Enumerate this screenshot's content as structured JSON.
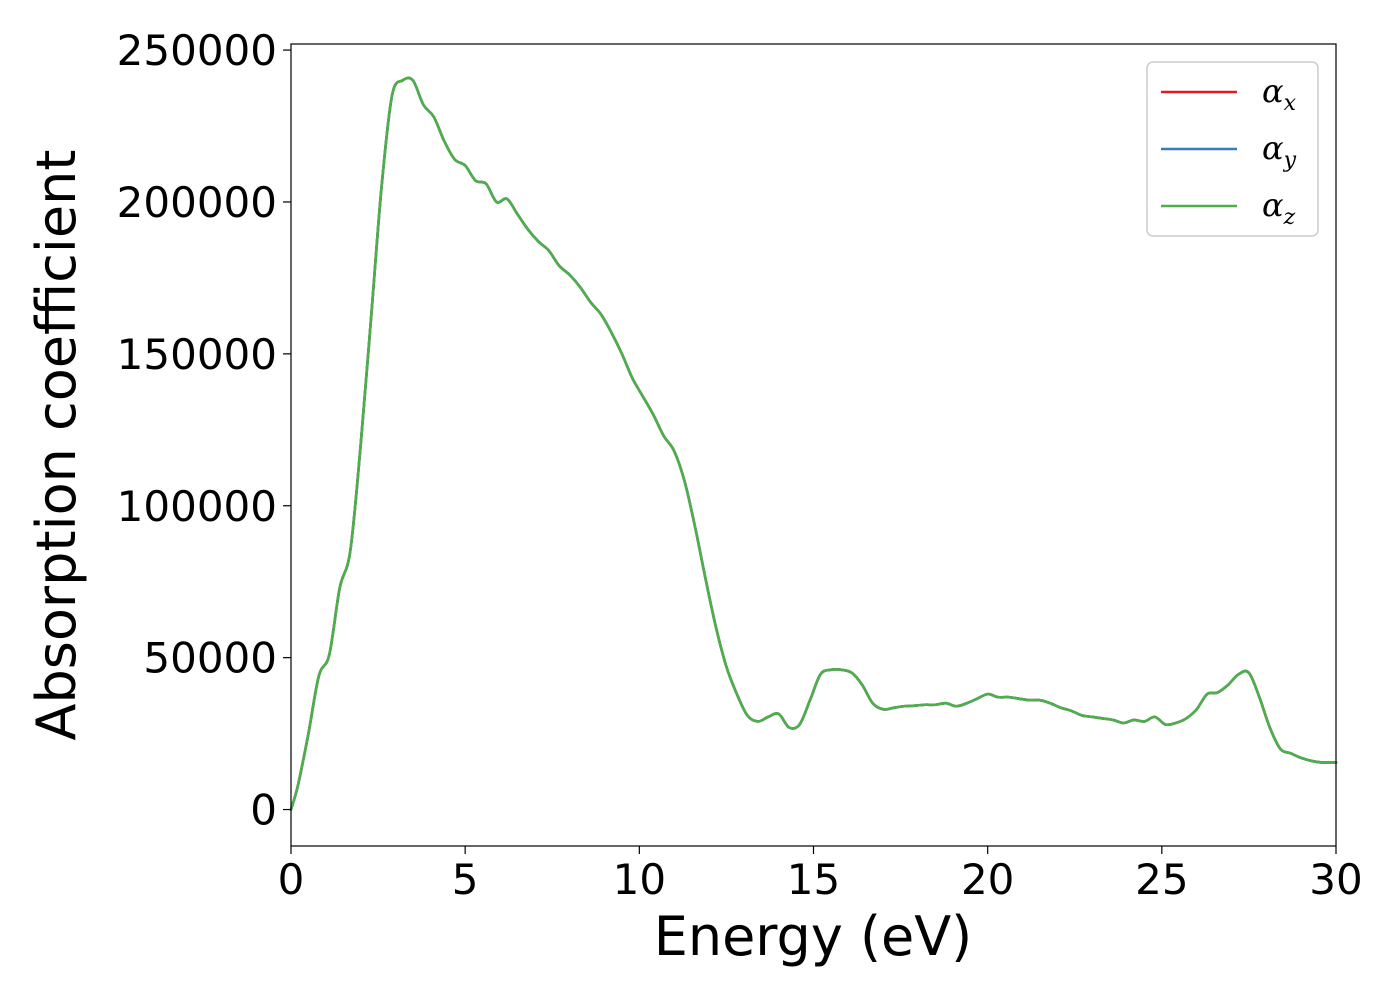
{
  "chart_data": {
    "type": "line",
    "title": "",
    "xlabel": "Energy (eV)",
    "ylabel": "Absorption coefficient",
    "xlim": [
      0,
      30
    ],
    "ylim": [
      -12000,
      252000
    ],
    "xticks": [
      0,
      5,
      10,
      15,
      20,
      25,
      30
    ],
    "yticks": [
      0,
      50000,
      100000,
      150000,
      200000,
      250000
    ],
    "xtick_labels": [
      "0",
      "5",
      "10",
      "15",
      "20",
      "25",
      "30"
    ],
    "ytick_labels": [
      "0",
      "50000",
      "100000",
      "150000",
      "200000",
      "250000"
    ],
    "grid": false,
    "legend_position": "top-right",
    "x": [
      0,
      0.2,
      0.5,
      0.8,
      1.1,
      1.4,
      1.7,
      2.0,
      2.3,
      2.6,
      2.9,
      3.2,
      3.5,
      3.8,
      4.1,
      4.4,
      4.7,
      5.0,
      5.3,
      5.6,
      5.9,
      6.2,
      6.5,
      6.8,
      7.1,
      7.4,
      7.7,
      8.0,
      8.3,
      8.6,
      8.9,
      9.2,
      9.5,
      9.8,
      10.1,
      10.4,
      10.7,
      11.0,
      11.3,
      11.6,
      11.9,
      12.2,
      12.5,
      12.8,
      13.1,
      13.4,
      13.7,
      14.0,
      14.3,
      14.6,
      14.9,
      15.2,
      15.5,
      15.8,
      16.1,
      16.4,
      16.7,
      17.0,
      17.3,
      17.6,
      17.9,
      18.2,
      18.5,
      18.8,
      19.1,
      19.4,
      19.7,
      20.0,
      20.3,
      20.6,
      20.9,
      21.2,
      21.5,
      21.8,
      22.1,
      22.4,
      22.7,
      23.0,
      23.3,
      23.6,
      23.9,
      24.2,
      24.5,
      24.8,
      25.1,
      25.4,
      25.7,
      26.0,
      26.3,
      26.6,
      26.9,
      27.2,
      27.5,
      27.8,
      28.1,
      28.4,
      28.7,
      29.0,
      29.3,
      29.6,
      30.0
    ],
    "series": [
      {
        "name": "α_x",
        "label_base": "α",
        "label_sub": "x",
        "color": "#e41a1c",
        "values": [
          0,
          8000,
          25000,
          44000,
          51000,
          73000,
          85000,
          120000,
          162000,
          205000,
          235000,
          240000,
          240000,
          232000,
          228000,
          220000,
          214000,
          212000,
          207000,
          206000,
          200000,
          201000,
          196000,
          191000,
          187000,
          184000,
          179000,
          176000,
          172000,
          167000,
          163000,
          157000,
          150000,
          142000,
          136000,
          130000,
          123000,
          118000,
          108000,
          93000,
          76000,
          60000,
          47000,
          38000,
          31000,
          29000,
          30500,
          31500,
          27000,
          28000,
          36000,
          44500,
          46000,
          46000,
          45000,
          41000,
          35000,
          33000,
          33500,
          34000,
          34200,
          34500,
          34500,
          35000,
          34000,
          35000,
          36500,
          38000,
          37000,
          37000,
          36500,
          36000,
          36000,
          35000,
          33500,
          32500,
          31000,
          30500,
          30000,
          29500,
          28500,
          29500,
          29000,
          30500,
          28000,
          28500,
          30000,
          33000,
          38000,
          38500,
          41000,
          44500,
          45000,
          37000,
          27000,
          20000,
          18500,
          17000,
          16000,
          15500,
          15500
        ]
      },
      {
        "name": "α_y",
        "label_base": "α",
        "label_sub": "y",
        "color": "#377eb8",
        "values": [
          0,
          8000,
          25000,
          44000,
          51000,
          73000,
          85000,
          120000,
          162000,
          205000,
          235000,
          240000,
          240000,
          232000,
          228000,
          220000,
          214000,
          212000,
          207000,
          206000,
          200000,
          201000,
          196000,
          191000,
          187000,
          184000,
          179000,
          176000,
          172000,
          167000,
          163000,
          157000,
          150000,
          142000,
          136000,
          130000,
          123000,
          118000,
          108000,
          93000,
          76000,
          60000,
          47000,
          38000,
          31000,
          29000,
          30500,
          31500,
          27000,
          28000,
          36000,
          44500,
          46000,
          46000,
          45000,
          41000,
          35000,
          33000,
          33500,
          34000,
          34200,
          34500,
          34500,
          35000,
          34000,
          35000,
          36500,
          38000,
          37000,
          37000,
          36500,
          36000,
          36000,
          35000,
          33500,
          32500,
          31000,
          30500,
          30000,
          29500,
          28500,
          29500,
          29000,
          30500,
          28000,
          28500,
          30000,
          33000,
          38000,
          38500,
          41000,
          44500,
          45000,
          37000,
          27000,
          20000,
          18500,
          17000,
          16000,
          15500,
          15500
        ]
      },
      {
        "name": "α_z",
        "label_base": "α",
        "label_sub": "z",
        "color": "#4daf4a",
        "values": [
          0,
          8000,
          25000,
          44000,
          51000,
          73000,
          85000,
          120000,
          162000,
          205000,
          235000,
          240000,
          240000,
          232000,
          228000,
          220000,
          214000,
          212000,
          207000,
          206000,
          200000,
          201000,
          196000,
          191000,
          187000,
          184000,
          179000,
          176000,
          172000,
          167000,
          163000,
          157000,
          150000,
          142000,
          136000,
          130000,
          123000,
          118000,
          108000,
          93000,
          76000,
          60000,
          47000,
          38000,
          31000,
          29000,
          30500,
          31500,
          27000,
          28000,
          36000,
          44500,
          46000,
          46000,
          45000,
          41000,
          35000,
          33000,
          33500,
          34000,
          34200,
          34500,
          34500,
          35000,
          34000,
          35000,
          36500,
          38000,
          37000,
          37000,
          36500,
          36000,
          36000,
          35000,
          33500,
          32500,
          31000,
          30500,
          30000,
          29500,
          28500,
          29500,
          29000,
          30500,
          28000,
          28500,
          30000,
          33000,
          38000,
          38500,
          41000,
          44500,
          45000,
          37000,
          27000,
          20000,
          18500,
          17000,
          16000,
          15500,
          15500
        ]
      }
    ]
  }
}
